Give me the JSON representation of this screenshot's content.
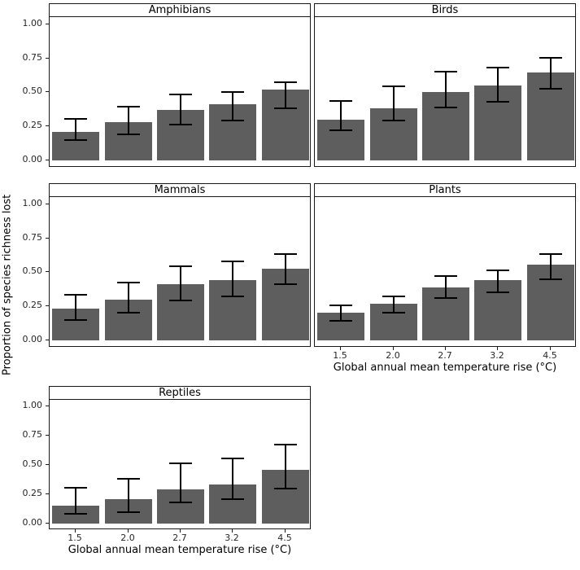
{
  "chart_data": {
    "type": "bar",
    "y_label": "Proportion of species richness lost",
    "x_label": "Global annual mean temperature rise (°C)",
    "categories": [
      "1.5",
      "2.0",
      "2.7",
      "3.2",
      "4.5"
    ],
    "y_ticks": [
      0.0,
      0.25,
      0.5,
      0.75,
      1.0
    ],
    "y_tick_labels": [
      "0.00",
      "0.25",
      "0.50",
      "0.75",
      "1.00"
    ],
    "ylim": [
      0,
      1.05
    ],
    "grid": false,
    "legend": "none",
    "bar_color": "#5e5e5e",
    "error_color": "#000000",
    "facets": [
      {
        "title": "Amphibians",
        "row": 0,
        "col": 0,
        "show_y_axis": true,
        "show_x_axis": false,
        "values": [
          0.21,
          0.28,
          0.37,
          0.41,
          0.52
        ],
        "error_low": [
          0.15,
          0.19,
          0.26,
          0.29,
          0.38
        ],
        "error_high": [
          0.31,
          0.4,
          0.49,
          0.51,
          0.58
        ]
      },
      {
        "title": "Birds",
        "row": 0,
        "col": 1,
        "show_y_axis": false,
        "show_x_axis": false,
        "values": [
          0.3,
          0.38,
          0.5,
          0.55,
          0.65
        ],
        "error_low": [
          0.22,
          0.29,
          0.39,
          0.43,
          0.53
        ],
        "error_high": [
          0.44,
          0.55,
          0.66,
          0.69,
          0.76
        ]
      },
      {
        "title": "Mammals",
        "row": 1,
        "col": 0,
        "show_y_axis": true,
        "show_x_axis": false,
        "values": [
          0.23,
          0.3,
          0.41,
          0.44,
          0.53
        ],
        "error_low": [
          0.15,
          0.2,
          0.29,
          0.32,
          0.41
        ],
        "error_high": [
          0.34,
          0.43,
          0.55,
          0.59,
          0.64
        ]
      },
      {
        "title": "Plants",
        "row": 1,
        "col": 1,
        "show_y_axis": false,
        "show_x_axis": true,
        "values": [
          0.2,
          0.27,
          0.39,
          0.44,
          0.56
        ],
        "error_low": [
          0.14,
          0.2,
          0.31,
          0.35,
          0.45
        ],
        "error_high": [
          0.26,
          0.33,
          0.48,
          0.52,
          0.64
        ]
      },
      {
        "title": "Reptiles",
        "row": 2,
        "col": 0,
        "show_y_axis": true,
        "show_x_axis": true,
        "values": [
          0.15,
          0.21,
          0.29,
          0.33,
          0.46
        ],
        "error_low": [
          0.08,
          0.1,
          0.18,
          0.21,
          0.3
        ],
        "error_high": [
          0.31,
          0.39,
          0.52,
          0.56,
          0.68
        ]
      }
    ]
  }
}
